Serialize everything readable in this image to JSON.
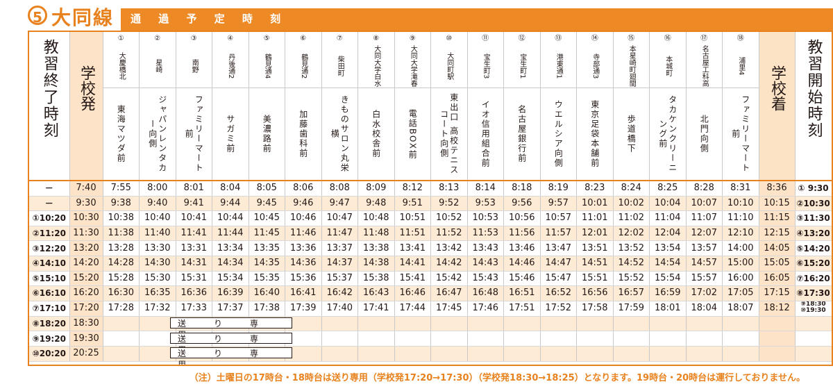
{
  "header": {
    "route_num": "5",
    "route_name": "大同線",
    "title": "通 過 予 定 時 刻"
  },
  "left_header": "教習終了時刻",
  "depart_header": "学校発",
  "arrive_header": "学校着",
  "right_header": "教習開始時刻",
  "stops": [
    {
      "num": "①",
      "name": "大慶橋北",
      "landmark": "東海マツダ前"
    },
    {
      "num": "②",
      "name": "星崎",
      "landmark": "ジャパンレンタカー向側"
    },
    {
      "num": "③",
      "name": "南野",
      "landmark": "ファミリーマート前"
    },
    {
      "num": "④",
      "name": "丹後通2",
      "landmark": "サガミ前"
    },
    {
      "num": "⑤",
      "name": "鶴見通4",
      "landmark": "美濃路前"
    },
    {
      "num": "⑥",
      "name": "鶴見通2",
      "landmark": "加藤歯科前"
    },
    {
      "num": "⑦",
      "name": "柴田町",
      "landmark": "きものサロン丸栄横"
    },
    {
      "num": "⑧",
      "name": "大同大学白水",
      "landmark": "白水校舎前"
    },
    {
      "num": "⑨",
      "name": "大同大学滝春",
      "landmark": "電話BOX前"
    },
    {
      "num": "⑩",
      "name": "大同町駅",
      "landmark": "東出口 高校テニスコート向側"
    },
    {
      "num": "⑪",
      "name": "宝生町3",
      "landmark": "イオ信用組合前"
    },
    {
      "num": "⑫",
      "name": "宝生町1",
      "landmark": "名古屋銀行前"
    },
    {
      "num": "⑬",
      "name": "港東通1",
      "landmark": "ウエルシア向側"
    },
    {
      "num": "⑭",
      "name": "寺部通3",
      "landmark": "東京足袋本舗前"
    },
    {
      "num": "⑮",
      "name": "本星崎町廻間",
      "landmark": "歩道橋下"
    },
    {
      "num": "⑯",
      "name": "本城町",
      "landmark": "タカケンクリーニング前"
    },
    {
      "num": "⑰",
      "name": "名古屋工科高",
      "landmark": "北門向側"
    },
    {
      "num": "⑱",
      "name": "浦里4",
      "landmark": "ファミリーマート前"
    }
  ],
  "rows": [
    {
      "end": "－",
      "dep": "7:40",
      "times": [
        "7:55",
        "8:00",
        "8:01",
        "8:04",
        "8:05",
        "8:06",
        "8:08",
        "8:09",
        "8:12",
        "8:13",
        "8:14",
        "8:18",
        "8:19",
        "8:23",
        "8:24",
        "8:25",
        "8:28",
        "8:31"
      ],
      "arr": "8:36",
      "start": "① 9:30"
    },
    {
      "end": "－",
      "dep": "9:30",
      "times": [
        "9:38",
        "9:40",
        "9:41",
        "9:44",
        "9:45",
        "9:46",
        "9:47",
        "9:48",
        "9:51",
        "9:52",
        "9:53",
        "9:56",
        "9:57",
        "10:01",
        "10:02",
        "10:04",
        "10:07",
        "10:10"
      ],
      "arr": "10:15",
      "start": "②10:30"
    },
    {
      "end": "①10:20",
      "dep": "10:30",
      "times": [
        "10:38",
        "10:40",
        "10:41",
        "10:44",
        "10:45",
        "10:46",
        "10:47",
        "10:48",
        "10:51",
        "10:52",
        "10:53",
        "10:56",
        "10:57",
        "11:01",
        "11:02",
        "11:04",
        "11:07",
        "11:10"
      ],
      "arr": "11:15",
      "start": "③11:30"
    },
    {
      "end": "②11:20",
      "dep": "11:30",
      "times": [
        "11:38",
        "11:40",
        "11:41",
        "11:44",
        "11:45",
        "11:46",
        "11:47",
        "11:48",
        "11:51",
        "11:52",
        "11:53",
        "11:56",
        "11:57",
        "12:01",
        "12:02",
        "12:04",
        "12:07",
        "12:10"
      ],
      "arr": "12:15",
      "start": "④13:20"
    },
    {
      "end": "③12:20",
      "dep": "13:20",
      "times": [
        "13:28",
        "13:30",
        "13:31",
        "13:34",
        "13:35",
        "13:36",
        "13:37",
        "13:38",
        "13:41",
        "13:42",
        "13:43",
        "13:46",
        "13:47",
        "13:51",
        "13:52",
        "13:54",
        "13:57",
        "14:00"
      ],
      "arr": "14:05",
      "start": "⑤14:20"
    },
    {
      "end": "④14:10",
      "dep": "14:20",
      "times": [
        "14:28",
        "14:30",
        "14:31",
        "14:34",
        "14:35",
        "14:36",
        "14:37",
        "14:38",
        "14:41",
        "14:42",
        "14:43",
        "14:46",
        "14:47",
        "14:51",
        "14:52",
        "14:54",
        "14:57",
        "15:00"
      ],
      "arr": "15:05",
      "start": "⑥15:20"
    },
    {
      "end": "⑤15:10",
      "dep": "15:20",
      "times": [
        "15:28",
        "15:30",
        "15:31",
        "15:34",
        "15:35",
        "15:36",
        "15:37",
        "15:38",
        "15:41",
        "15:42",
        "15:43",
        "15:46",
        "15:47",
        "15:51",
        "15:52",
        "15:54",
        "15:57",
        "16:00"
      ],
      "arr": "16:05",
      "start": "⑦16:20"
    },
    {
      "end": "⑥16:10",
      "dep": "16:20",
      "times": [
        "16:30",
        "16:35",
        "16:36",
        "16:39",
        "16:40",
        "16:41",
        "16:42",
        "16:43",
        "16:46",
        "16:47",
        "16:48",
        "16:51",
        "16:52",
        "16:56",
        "16:57",
        "16:59",
        "17:02",
        "17:05"
      ],
      "arr": "17:15",
      "start": "⑧17:30"
    },
    {
      "end": "⑦17:10",
      "dep": "17:20",
      "times": [
        "17:28",
        "17:32",
        "17:33",
        "17:37",
        "17:38",
        "17:39",
        "17:40",
        "17:41",
        "17:44",
        "17:45",
        "17:46",
        "17:51",
        "17:52",
        "17:58",
        "17:59",
        "18:01",
        "18:04",
        "18:07"
      ],
      "arr": "18:12",
      "start": "⑨18:30 ⑩19:30"
    },
    {
      "end": "⑧18:20",
      "dep": "18:30",
      "times": [],
      "arr": "",
      "start": ""
    },
    {
      "end": "⑨19:20",
      "dep": "19:30",
      "times": [],
      "arr": "",
      "start": ""
    },
    {
      "end": "⑩20:20",
      "dep": "20:25",
      "times": [],
      "arr": "",
      "start": ""
    }
  ],
  "send_only_label": "送り専用",
  "note": "（注）土曜日の17時台・18時台は送り専用（学校発17:20→17:30）（学校発18:30→18:25）となります。19時台・20時台は運行しておりません。"
}
